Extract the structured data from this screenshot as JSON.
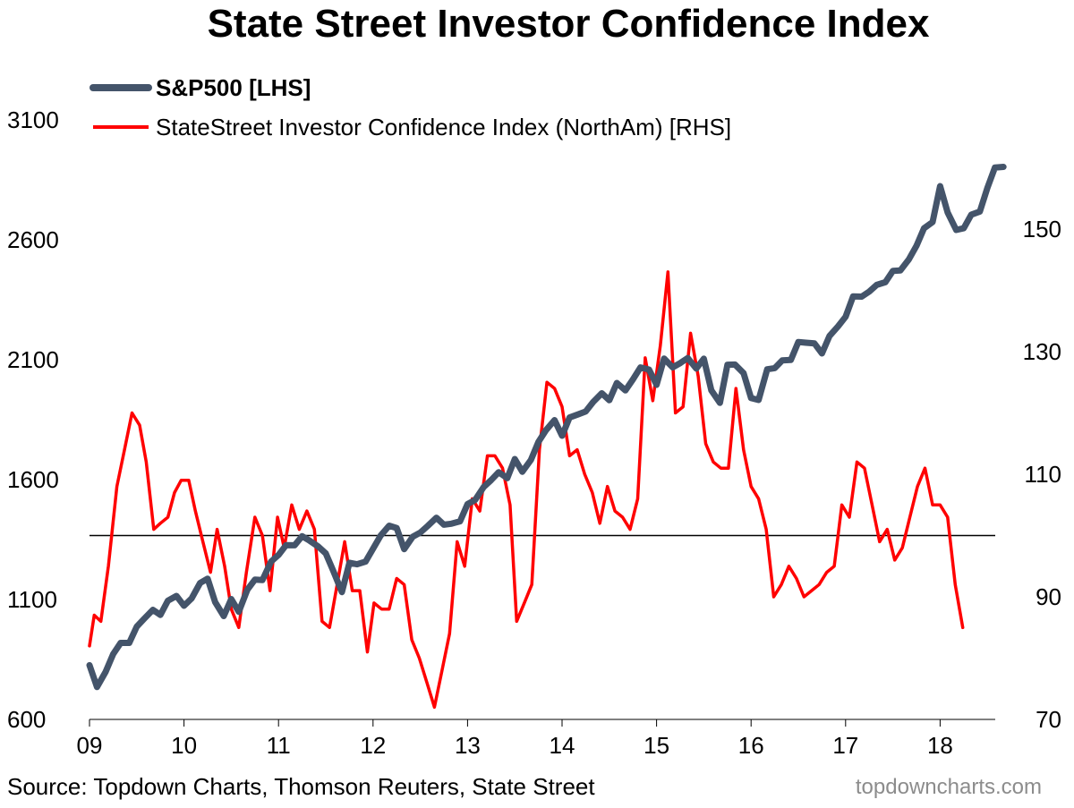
{
  "header": {
    "title": "State Street Investor Confidence Index"
  },
  "footer": {
    "source": "Source: Topdown Charts, Thomson Reuters, State Street",
    "brand": "topdowncharts.com"
  },
  "colors": {
    "sp500": "#44546a",
    "confidence": "#ff0000",
    "reference_line": "#000000"
  },
  "chart_data": {
    "type": "line",
    "title": "State Street Investor Confidence Index",
    "x_range": [
      2009,
      2018.7
    ],
    "x_tick_labels": [
      "09",
      "10",
      "11",
      "12",
      "13",
      "14",
      "15",
      "16",
      "17",
      "18"
    ],
    "y_left": {
      "range": [
        600,
        3100
      ],
      "ticks": [
        600,
        1100,
        1600,
        2100,
        2600,
        3100
      ]
    },
    "y_right": {
      "range": [
        70,
        170
      ],
      "ticks": [
        70,
        90,
        110,
        130,
        150
      ]
    },
    "reference_line": {
      "axis": "right",
      "value": 100
    },
    "legend_position": "top-left",
    "series": [
      {
        "name": "S&P500 [LHS]",
        "axis": "left",
        "points": [
          [
            2009.0,
            826
          ],
          [
            2009.08,
            735
          ],
          [
            2009.17,
            798
          ],
          [
            2009.25,
            872
          ],
          [
            2009.33,
            919
          ],
          [
            2009.42,
            919
          ],
          [
            2009.5,
            987
          ],
          [
            2009.58,
            1020
          ],
          [
            2009.67,
            1057
          ],
          [
            2009.75,
            1036
          ],
          [
            2009.83,
            1095
          ],
          [
            2009.92,
            1115
          ],
          [
            2010.0,
            1074
          ],
          [
            2010.08,
            1104
          ],
          [
            2010.17,
            1169
          ],
          [
            2010.25,
            1187
          ],
          [
            2010.33,
            1089
          ],
          [
            2010.42,
            1031
          ],
          [
            2010.5,
            1102
          ],
          [
            2010.58,
            1049
          ],
          [
            2010.67,
            1141
          ],
          [
            2010.75,
            1183
          ],
          [
            2010.83,
            1181
          ],
          [
            2010.92,
            1258
          ],
          [
            2011.0,
            1286
          ],
          [
            2011.08,
            1327
          ],
          [
            2011.17,
            1326
          ],
          [
            2011.25,
            1364
          ],
          [
            2011.33,
            1345
          ],
          [
            2011.42,
            1321
          ],
          [
            2011.5,
            1292
          ],
          [
            2011.58,
            1219
          ],
          [
            2011.67,
            1131
          ],
          [
            2011.75,
            1253
          ],
          [
            2011.83,
            1247
          ],
          [
            2011.92,
            1258
          ],
          [
            2012.0,
            1312
          ],
          [
            2012.08,
            1366
          ],
          [
            2012.17,
            1408
          ],
          [
            2012.25,
            1398
          ],
          [
            2012.33,
            1310
          ],
          [
            2012.42,
            1362
          ],
          [
            2012.5,
            1379
          ],
          [
            2012.58,
            1407
          ],
          [
            2012.67,
            1441
          ],
          [
            2012.75,
            1412
          ],
          [
            2012.83,
            1416
          ],
          [
            2012.92,
            1426
          ],
          [
            2013.0,
            1498
          ],
          [
            2013.08,
            1515
          ],
          [
            2013.17,
            1569
          ],
          [
            2013.25,
            1598
          ],
          [
            2013.33,
            1631
          ],
          [
            2013.42,
            1606
          ],
          [
            2013.5,
            1686
          ],
          [
            2013.58,
            1633
          ],
          [
            2013.67,
            1682
          ],
          [
            2013.75,
            1757
          ],
          [
            2013.83,
            1806
          ],
          [
            2013.92,
            1848
          ],
          [
            2014.0,
            1783
          ],
          [
            2014.08,
            1859
          ],
          [
            2014.17,
            1872
          ],
          [
            2014.25,
            1884
          ],
          [
            2014.33,
            1924
          ],
          [
            2014.42,
            1960
          ],
          [
            2014.5,
            1931
          ],
          [
            2014.58,
            2003
          ],
          [
            2014.67,
            1972
          ],
          [
            2014.75,
            2018
          ],
          [
            2014.83,
            2068
          ],
          [
            2014.92,
            2059
          ],
          [
            2015.0,
            1995
          ],
          [
            2015.08,
            2105
          ],
          [
            2015.17,
            2068
          ],
          [
            2015.25,
            2086
          ],
          [
            2015.33,
            2107
          ],
          [
            2015.42,
            2063
          ],
          [
            2015.5,
            2104
          ],
          [
            2015.58,
            1972
          ],
          [
            2015.67,
            1920
          ],
          [
            2015.75,
            2079
          ],
          [
            2015.83,
            2080
          ],
          [
            2015.92,
            2044
          ],
          [
            2016.0,
            1940
          ],
          [
            2016.08,
            1932
          ],
          [
            2016.17,
            2060
          ],
          [
            2016.25,
            2065
          ],
          [
            2016.33,
            2097
          ],
          [
            2016.42,
            2099
          ],
          [
            2016.5,
            2174
          ],
          [
            2016.58,
            2171
          ],
          [
            2016.67,
            2168
          ],
          [
            2016.75,
            2126
          ],
          [
            2016.83,
            2199
          ],
          [
            2016.92,
            2239
          ],
          [
            2017.0,
            2279
          ],
          [
            2017.08,
            2364
          ],
          [
            2017.17,
            2363
          ],
          [
            2017.25,
            2384
          ],
          [
            2017.33,
            2412
          ],
          [
            2017.42,
            2423
          ],
          [
            2017.5,
            2470
          ],
          [
            2017.58,
            2472
          ],
          [
            2017.67,
            2519
          ],
          [
            2017.75,
            2575
          ],
          [
            2017.83,
            2648
          ],
          [
            2017.92,
            2674
          ],
          [
            2018.0,
            2824
          ],
          [
            2018.08,
            2714
          ],
          [
            2018.17,
            2641
          ],
          [
            2018.25,
            2648
          ],
          [
            2018.33,
            2705
          ],
          [
            2018.42,
            2718
          ],
          [
            2018.5,
            2816
          ],
          [
            2018.58,
            2901
          ],
          [
            2018.67,
            2904
          ]
        ]
      },
      {
        "name": "StateStreet Investor Confidence Index (NorthAm) [RHS]",
        "axis": "right",
        "points": [
          [
            2009.0,
            82
          ],
          [
            2009.05,
            87
          ],
          [
            2009.12,
            86
          ],
          [
            2009.2,
            95
          ],
          [
            2009.29,
            108
          ],
          [
            2009.37,
            114
          ],
          [
            2009.45,
            120
          ],
          [
            2009.53,
            118
          ],
          [
            2009.6,
            112
          ],
          [
            2009.68,
            101
          ],
          [
            2009.75,
            102
          ],
          [
            2009.83,
            103
          ],
          [
            2009.9,
            107
          ],
          [
            2009.97,
            109
          ],
          [
            2010.05,
            109
          ],
          [
            2010.12,
            104
          ],
          [
            2010.2,
            99
          ],
          [
            2010.28,
            94
          ],
          [
            2010.35,
            101
          ],
          [
            2010.43,
            95
          ],
          [
            2010.5,
            88
          ],
          [
            2010.58,
            85
          ],
          [
            2010.66,
            94
          ],
          [
            2010.75,
            103
          ],
          [
            2010.83,
            100
          ],
          [
            2010.91,
            91
          ],
          [
            2010.99,
            103
          ],
          [
            2011.06,
            98
          ],
          [
            2011.14,
            105
          ],
          [
            2011.22,
            101
          ],
          [
            2011.3,
            104
          ],
          [
            2011.38,
            101
          ],
          [
            2011.46,
            86
          ],
          [
            2011.54,
            85
          ],
          [
            2011.62,
            92
          ],
          [
            2011.7,
            99
          ],
          [
            2011.78,
            91
          ],
          [
            2011.86,
            91
          ],
          [
            2011.94,
            81
          ],
          [
            2012.01,
            89
          ],
          [
            2012.09,
            88
          ],
          [
            2012.17,
            88
          ],
          [
            2012.25,
            93
          ],
          [
            2012.33,
            92
          ],
          [
            2012.41,
            83
          ],
          [
            2012.49,
            80
          ],
          [
            2012.57,
            76
          ],
          [
            2012.65,
            72
          ],
          [
            2012.73,
            78
          ],
          [
            2012.81,
            84
          ],
          [
            2012.89,
            99
          ],
          [
            2012.97,
            95
          ],
          [
            2013.05,
            106
          ],
          [
            2013.13,
            104
          ],
          [
            2013.21,
            113
          ],
          [
            2013.29,
            113
          ],
          [
            2013.37,
            111
          ],
          [
            2013.45,
            105
          ],
          [
            2013.52,
            86
          ],
          [
            2013.6,
            89
          ],
          [
            2013.68,
            92
          ],
          [
            2013.76,
            114
          ],
          [
            2013.84,
            125
          ],
          [
            2013.92,
            124
          ],
          [
            2014.0,
            121
          ],
          [
            2014.08,
            113
          ],
          [
            2014.16,
            114
          ],
          [
            2014.24,
            110
          ],
          [
            2014.32,
            107
          ],
          [
            2014.4,
            102
          ],
          [
            2014.48,
            108
          ],
          [
            2014.56,
            104
          ],
          [
            2014.64,
            103
          ],
          [
            2014.72,
            101
          ],
          [
            2014.8,
            106
          ],
          [
            2014.88,
            129
          ],
          [
            2014.96,
            122
          ],
          [
            2015.04,
            131
          ],
          [
            2015.12,
            143
          ],
          [
            2015.2,
            120
          ],
          [
            2015.28,
            121
          ],
          [
            2015.36,
            133
          ],
          [
            2015.44,
            126
          ],
          [
            2015.52,
            115
          ],
          [
            2015.6,
            112
          ],
          [
            2015.68,
            111
          ],
          [
            2015.76,
            111
          ],
          [
            2015.84,
            124
          ],
          [
            2015.92,
            114
          ],
          [
            2016.0,
            108
          ],
          [
            2016.08,
            106
          ],
          [
            2016.16,
            101
          ],
          [
            2016.24,
            90
          ],
          [
            2016.32,
            92
          ],
          [
            2016.4,
            95
          ],
          [
            2016.48,
            93
          ],
          [
            2016.56,
            90
          ],
          [
            2016.64,
            91
          ],
          [
            2016.72,
            92
          ],
          [
            2016.8,
            94
          ],
          [
            2016.88,
            95
          ],
          [
            2016.96,
            105
          ],
          [
            2017.04,
            103
          ],
          [
            2017.12,
            112
          ],
          [
            2017.2,
            111
          ],
          [
            2017.28,
            105
          ],
          [
            2017.36,
            99
          ],
          [
            2017.44,
            101
          ],
          [
            2017.52,
            96
          ],
          [
            2017.6,
            98
          ],
          [
            2017.68,
            103
          ],
          [
            2017.76,
            108
          ],
          [
            2017.84,
            111
          ],
          [
            2017.92,
            105
          ],
          [
            2018.0,
            105
          ],
          [
            2018.08,
            103
          ],
          [
            2018.16,
            92
          ],
          [
            2018.24,
            85
          ]
        ]
      }
    ]
  }
}
